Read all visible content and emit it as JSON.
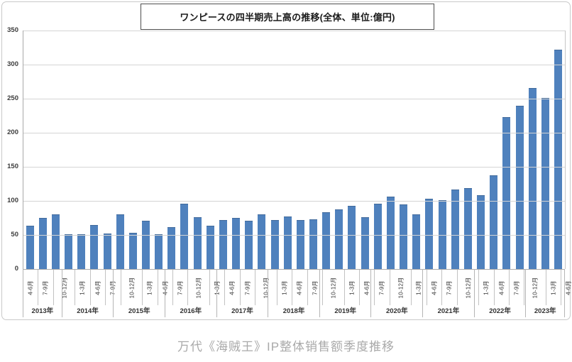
{
  "caption": "万代《海贼王》IP整体销售额季度推移",
  "chart_data": {
    "type": "bar",
    "title": "ワンピースの四半期売上高の推移(全体、単位:億円)",
    "unit": "億円",
    "bar_color": "#4f81bd",
    "grid": true,
    "legend": false,
    "ylim": [
      0,
      350
    ],
    "ytick_interval": 50,
    "yticks": [
      0,
      50,
      100,
      150,
      200,
      250,
      300,
      350
    ],
    "groups": [
      {
        "year": "2013年",
        "quarters": [
          "4-6月",
          "7-9月",
          "10-12月"
        ],
        "values": [
          62,
          74,
          79
        ]
      },
      {
        "year": "2014年",
        "quarters": [
          "1-3月",
          "4-6月",
          "7-9月",
          "10-12月"
        ],
        "values": [
          50,
          50,
          64,
          51
        ]
      },
      {
        "year": "2015年",
        "quarters": [
          "1-3月",
          "4-6月",
          "7-9月",
          "10-12月"
        ],
        "values": [
          79,
          52,
          70,
          50
        ]
      },
      {
        "year": "2016年",
        "quarters": [
          "1-3月",
          "4-6月",
          "7-9月",
          "10-12月"
        ],
        "values": [
          60,
          95,
          75,
          62
        ]
      },
      {
        "year": "2017年",
        "quarters": [
          "1-3月",
          "4-6月",
          "7-9月",
          "10-12月"
        ],
        "values": [
          71,
          74,
          70,
          79
        ]
      },
      {
        "year": "2018年",
        "quarters": [
          "1-3月",
          "4-6月",
          "7-9月",
          "10-12月"
        ],
        "values": [
          71,
          76,
          71,
          72
        ]
      },
      {
        "year": "2019年",
        "quarters": [
          "1-3月",
          "4-6月",
          "7-9月",
          "10-12月"
        ],
        "values": [
          82,
          86,
          92,
          75
        ]
      },
      {
        "year": "2020年",
        "quarters": [
          "1-3月",
          "4-6月",
          "7-9月",
          "10-12月"
        ],
        "values": [
          95,
          105,
          94,
          79
        ]
      },
      {
        "year": "2021年",
        "quarters": [
          "1-3月",
          "4-6月",
          "7-9月",
          "10-12月"
        ],
        "values": [
          102,
          100,
          116,
          118
        ]
      },
      {
        "year": "2022年",
        "quarters": [
          "1-3月",
          "4-6月",
          "7-9月",
          "10-12月"
        ],
        "values": [
          107,
          136,
          222,
          239
        ]
      },
      {
        "year": "2023年",
        "quarters": [
          "1-3月",
          "4-6月",
          "7-9月"
        ],
        "values": [
          265,
          250,
          321
        ]
      }
    ]
  }
}
